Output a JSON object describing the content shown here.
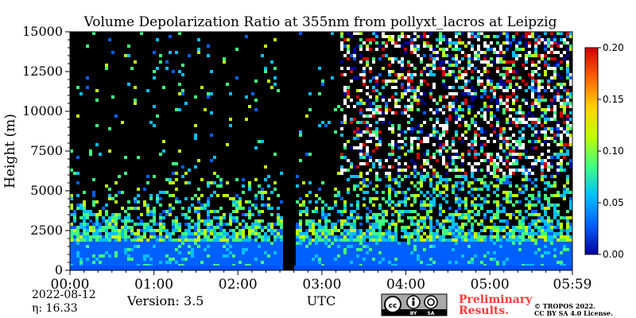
{
  "chart_data": {
    "type": "heatmap",
    "title": "Volume Depolarization Ratio at 355nm from pollyxt_lacros at Leipzig",
    "xlabel": "UTC",
    "ylabel": "Height (m)",
    "x_ticks": [
      "00:00",
      "01:00",
      "02:00",
      "03:00",
      "04:00",
      "05:00",
      "05:59"
    ],
    "x_range_hours": [
      0,
      5.983
    ],
    "y_ticks": [
      0,
      2500,
      5000,
      7500,
      10000,
      12500,
      15000
    ],
    "ylim": [
      0,
      15000
    ],
    "colorbar": {
      "ticks": [
        "0.00",
        "0.05",
        "0.10",
        "0.15",
        "0.20"
      ],
      "range": [
        0,
        0.2
      ],
      "colormap": "jet",
      "colors": [
        "#0000a0",
        "#0060ff",
        "#00c0ff",
        "#40ff80",
        "#c0ff00",
        "#ffd000",
        "#ff6000",
        "#d00000"
      ]
    },
    "no_data_color": "#000000",
    "data_gap_hours": [
      2.5,
      2.67
    ],
    "noisy_region_start_hours": 3.2,
    "depolarization_profile_note": "low ~0.03 below 2000 m, noisy ~0.05-0.10 above"
  },
  "footer": {
    "date": "2022-08-12",
    "eta": "η:  16.33",
    "version": "Version: 3.5",
    "preliminary": "Preliminary\nResults.",
    "copyright_line1": "© TROPOS 2022.",
    "copyright_line2": "CC BY SA 4.0 License.",
    "license_badge": [
      "cc",
      "BY",
      "SA"
    ],
    "preliminary_color": "#ff3b3b"
  }
}
